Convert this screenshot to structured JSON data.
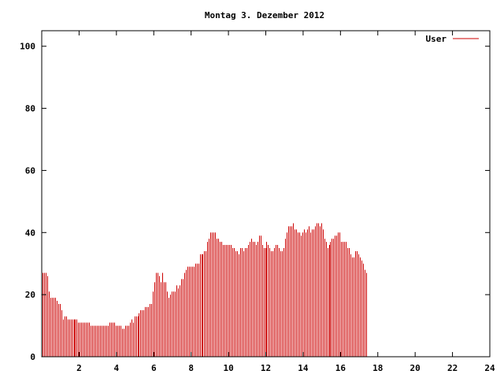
{
  "chart_data": {
    "type": "bar",
    "title": "Montag 3. Dezember 2012",
    "xlabel": "",
    "ylabel": "",
    "xlim": [
      0,
      24
    ],
    "ylim": [
      0,
      105
    ],
    "grid": false,
    "legend_position": "top-right",
    "bar_color": "#cc0000",
    "x_ticks": [
      2,
      4,
      6,
      8,
      10,
      12,
      14,
      16,
      18,
      20,
      22,
      24
    ],
    "x_tick_labels": [
      "2",
      "4",
      "6",
      "8",
      "10",
      "12",
      "14",
      "16",
      "18",
      "20",
      "22",
      "24"
    ],
    "y_ticks": [
      0,
      20,
      40,
      60,
      80,
      100
    ],
    "y_tick_labels": [
      "0",
      "20",
      "40",
      "60",
      "80",
      "100"
    ],
    "sample_interval_hours": 0.0833333,
    "series": [
      {
        "name": "User",
        "color": "#cc0000",
        "values": [
          27,
          27,
          27,
          26,
          21,
          19,
          19,
          19,
          19,
          18,
          17,
          17,
          15,
          12,
          13,
          13,
          12,
          12,
          12,
          12,
          12,
          12,
          12,
          11,
          11,
          11,
          11,
          11,
          11,
          11,
          11,
          10,
          10,
          10,
          10,
          10,
          10,
          10,
          10,
          10,
          10,
          10,
          10,
          11,
          11,
          11,
          11,
          10,
          10,
          10,
          10,
          9,
          9,
          10,
          10,
          10,
          11,
          12,
          11,
          13,
          13,
          13,
          14,
          15,
          15,
          15,
          16,
          16,
          16,
          17,
          17,
          21,
          24,
          27,
          27,
          26,
          24,
          27,
          24,
          24,
          21,
          19,
          20,
          21,
          21,
          21,
          23,
          22,
          23,
          25,
          25,
          27,
          28,
          29,
          29,
          29,
          29,
          29,
          30,
          30,
          30,
          33,
          33,
          33,
          34,
          34,
          37,
          38,
          40,
          40,
          40,
          40,
          38,
          38,
          37,
          37,
          36,
          36,
          36,
          36,
          36,
          36,
          35,
          35,
          34,
          34,
          33,
          35,
          35,
          34,
          35,
          35,
          36,
          37,
          38,
          37,
          37,
          36,
          37,
          39,
          39,
          36,
          35,
          35,
          37,
          36,
          35,
          34,
          34,
          35,
          36,
          36,
          35,
          34,
          34,
          35,
          38,
          40,
          42,
          42,
          42,
          43,
          41,
          41,
          40,
          40,
          39,
          40,
          41,
          40,
          41,
          42,
          40,
          41,
          41,
          42,
          43,
          43,
          42,
          43,
          41,
          38,
          37,
          35,
          36,
          37,
          38,
          38,
          39,
          39,
          40,
          40,
          37,
          37,
          37,
          37,
          35,
          35,
          33,
          32,
          32,
          34,
          34,
          33,
          32,
          31,
          30,
          28,
          27
        ]
      }
    ]
  }
}
